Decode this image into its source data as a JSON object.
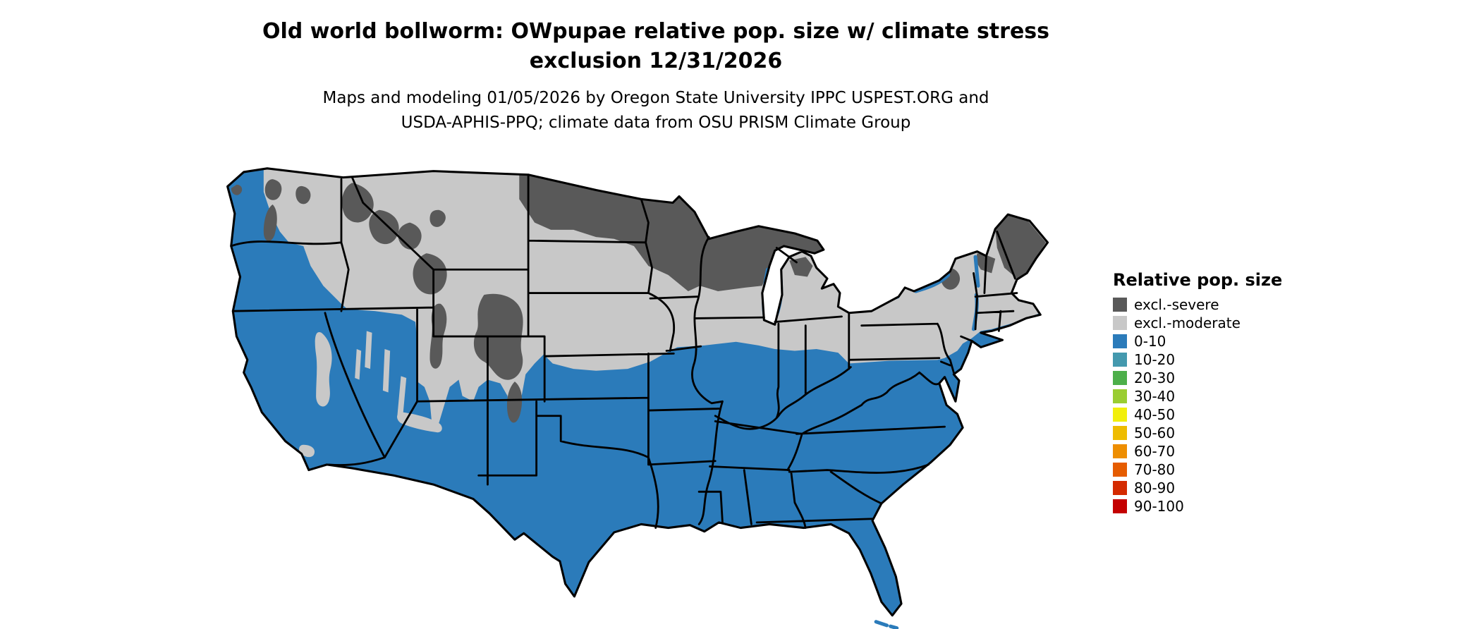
{
  "title": {
    "line1": "Old world bollworm: OWpupae relative pop. size w/ climate stress",
    "line2": "exclusion 12/31/2026"
  },
  "subtitle": {
    "line1": "Maps and modeling 01/05/2026 by Oregon State University IPPC USPEST.ORG and",
    "line2": "USDA-APHIS-PPQ; climate data from OSU PRISM Climate Group"
  },
  "legend": {
    "title": "Relative pop. size",
    "items": [
      {
        "label": "excl.-severe",
        "color": "#595959"
      },
      {
        "label": "excl.-moderate",
        "color": "#c8c8c8"
      },
      {
        "label": "0-10",
        "color": "#2b7bba"
      },
      {
        "label": "10-20",
        "color": "#4499ae"
      },
      {
        "label": "20-30",
        "color": "#4daf4a"
      },
      {
        "label": "30-40",
        "color": "#9acd32"
      },
      {
        "label": "40-50",
        "color": "#f2ef0c"
      },
      {
        "label": "50-60",
        "color": "#eebc00"
      },
      {
        "label": "60-70",
        "color": "#ee8e00"
      },
      {
        "label": "70-80",
        "color": "#e55c00"
      },
      {
        "label": "80-90",
        "color": "#d42a00"
      },
      {
        "label": "90-100",
        "color": "#c40000"
      }
    ]
  },
  "map": {
    "area": "Conterminous United States",
    "visible_categories": [
      "excl.-severe",
      "excl.-moderate",
      "0-10"
    ]
  }
}
